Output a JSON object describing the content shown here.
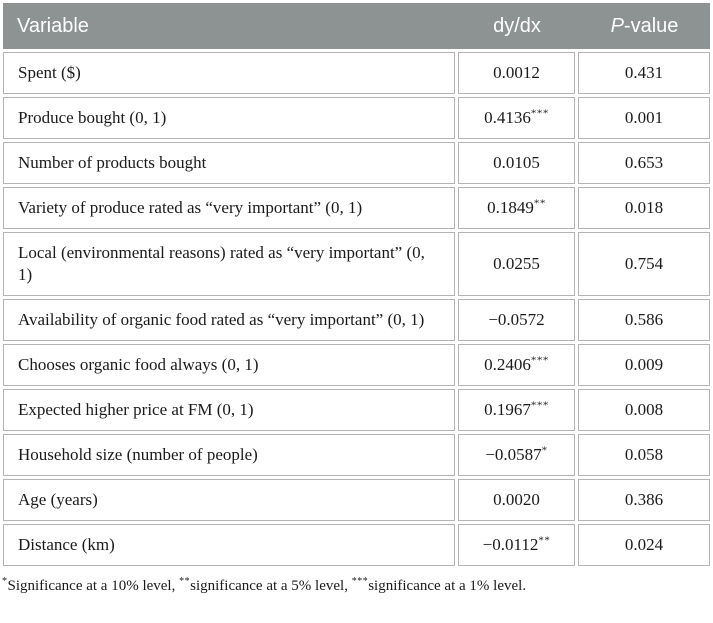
{
  "colors": {
    "header_bg": "#8d9293",
    "header_text": "#ffffff",
    "header_divider": "#a9aeaf",
    "cell_border": "#b4b4b4",
    "body_text": "#1a1a1a"
  },
  "table": {
    "header": {
      "variable": "Variable",
      "dydx": "dy/dx",
      "pvalue_italic": "P",
      "pvalue_rest": "-value"
    },
    "rows": [
      {
        "variable": "Spent ($)",
        "dydx": "0.0012",
        "stars": "",
        "pvalue": "0.431"
      },
      {
        "variable": "Produce bought (0, 1)",
        "dydx": "0.4136",
        "stars": "***",
        "pvalue": "0.001"
      },
      {
        "variable": "Number of products bought",
        "dydx": "0.0105",
        "stars": "",
        "pvalue": "0.653"
      },
      {
        "variable": "Variety of produce rated as “very important” (0, 1)",
        "dydx": "0.1849",
        "stars": "**",
        "pvalue": "0.018"
      },
      {
        "variable": "Local (environmental reasons) rated as “very important” (0, 1)",
        "dydx": "0.0255",
        "stars": "",
        "pvalue": "0.754"
      },
      {
        "variable": "Availability of organic food rated as “very important” (0, 1)",
        "dydx": "−0.0572",
        "stars": "",
        "pvalue": "0.586"
      },
      {
        "variable": "Chooses organic food always (0, 1)",
        "dydx": "0.2406",
        "stars": "***",
        "pvalue": "0.009"
      },
      {
        "variable": "Expected higher price at FM (0, 1)",
        "dydx": "0.1967",
        "stars": "***",
        "pvalue": "0.008"
      },
      {
        "variable": "Household size (number of people)",
        "dydx": "−0.0587",
        "stars": "*",
        "pvalue": "0.058"
      },
      {
        "variable": "Age (years)",
        "dydx": "0.0020",
        "stars": "",
        "pvalue": "0.386"
      },
      {
        "variable": "Distance (km)",
        "dydx": "−0.0112",
        "stars": "**",
        "pvalue": "0.024"
      }
    ]
  },
  "footnote": {
    "segments": [
      {
        "sup": "*",
        "text": "Significance at a 10% level, "
      },
      {
        "sup": "**",
        "text": "significance at a 5% level, "
      },
      {
        "sup": "***",
        "text": "significance at a 1% level."
      }
    ]
  }
}
